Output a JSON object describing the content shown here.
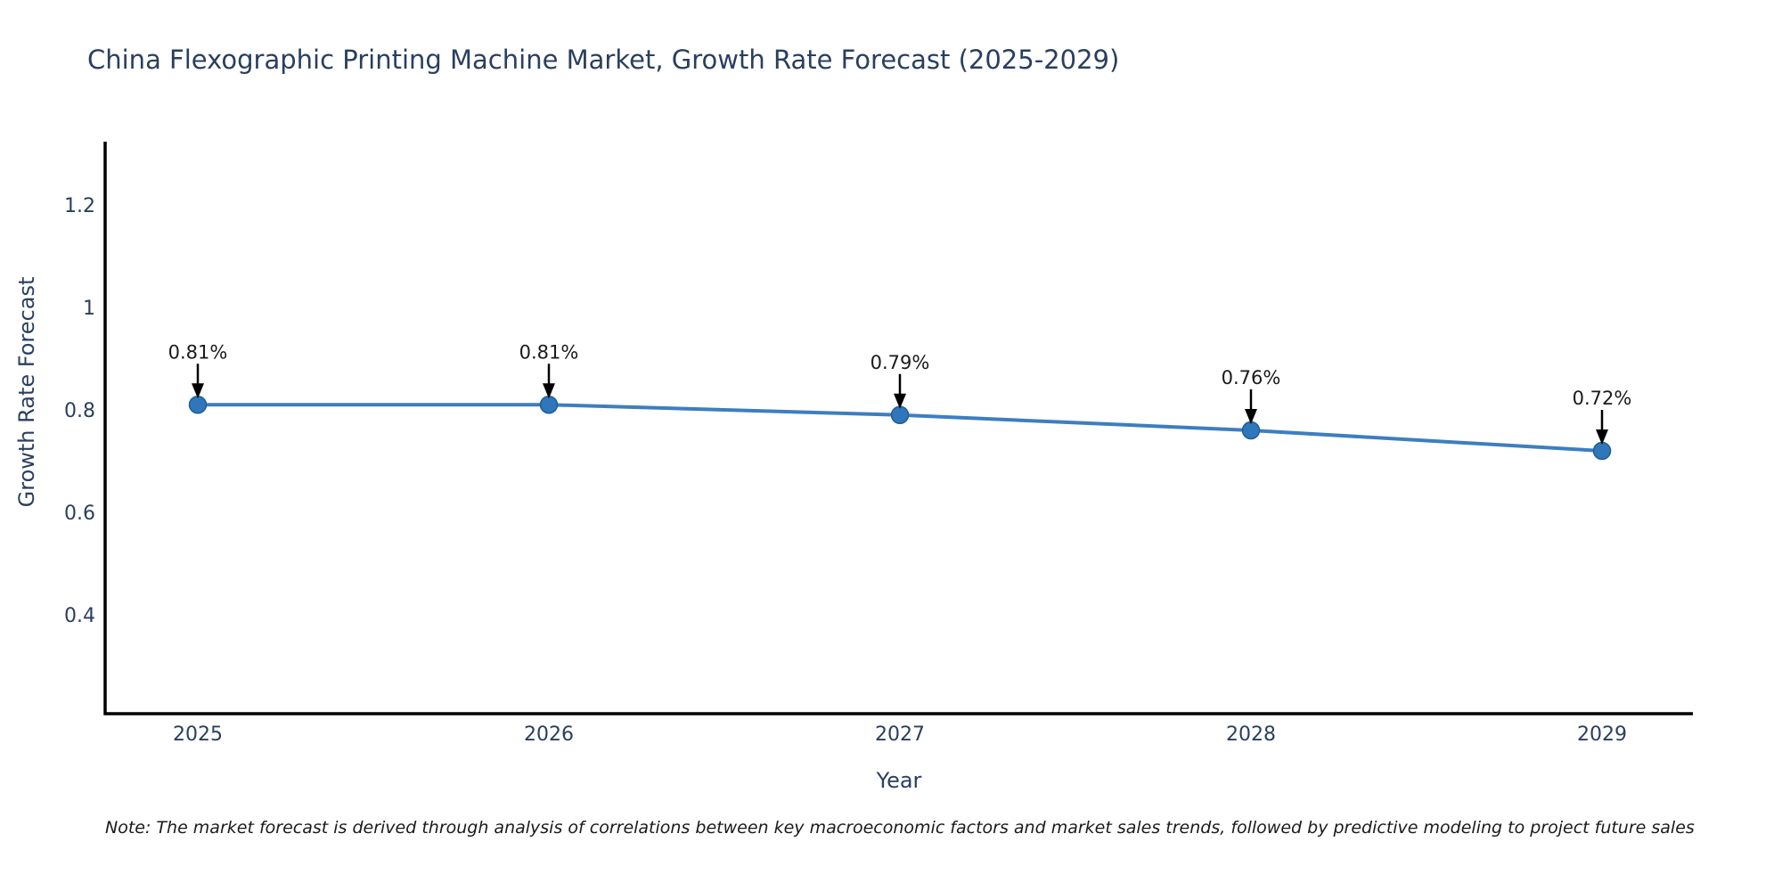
{
  "page": {
    "background": "#ffffff"
  },
  "note": {
    "text": "Note: The market forecast is derived through analysis of correlations between key macroeconomic factors and market sales trends, followed by predictive modeling to project future sales"
  },
  "chart_data": {
    "type": "line",
    "title": "China Flexographic Printing Machine Market, Growth Rate Forecast (2025-2029)",
    "xlabel": "Year",
    "ylabel": "Growth Rate Forecast",
    "x": [
      2025,
      2026,
      2027,
      2028,
      2029
    ],
    "xtick_labels": [
      "2025",
      "2026",
      "2027",
      "2028",
      "2029"
    ],
    "series": [
      {
        "name": "Growth Rate Forecast",
        "values": [
          0.81,
          0.81,
          0.79,
          0.76,
          0.72
        ]
      }
    ],
    "values": [
      0.81,
      0.81,
      0.79,
      0.76,
      0.72
    ],
    "point_labels": [
      "0.81%",
      "0.81%",
      "0.79%",
      "0.76%",
      "0.72%"
    ],
    "yticks": [
      0.4,
      0.6,
      0.8,
      1,
      1.2
    ],
    "ytick_labels": [
      "0.4",
      "0.6",
      "0.8",
      "1",
      "1.2"
    ],
    "ylim": [
      0.21,
      1.32
    ],
    "xlim": [
      2024.74,
      2029.26
    ],
    "grid": false,
    "legend": null,
    "colors": {
      "line": "#3d7ebf",
      "marker": "#2f76bb",
      "marker_edge": "#215e93",
      "annotation_text": "#1a1a1a",
      "arrow": "#000000",
      "axis": "#000000",
      "title_text": "#2a3f5f"
    }
  }
}
